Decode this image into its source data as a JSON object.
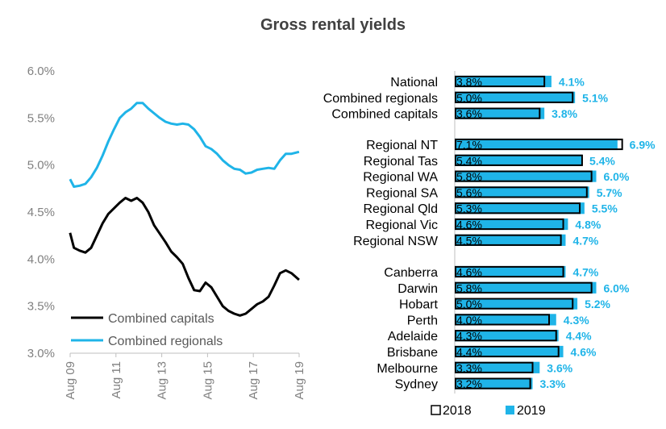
{
  "title": "Gross rental yields",
  "colors": {
    "y2019": "#1fb4e8",
    "capitals_line": "#000000",
    "regionals_line": "#1fb4e8",
    "axis": "#bfbfbf"
  },
  "chart_data": [
    {
      "type": "line",
      "x_ticks": [
        "Aug 09",
        "Aug 11",
        "Aug 13",
        "Aug 15",
        "Aug 17",
        "Aug 19"
      ],
      "y_ticks": [
        "6.0%",
        "5.5%",
        "5.0%",
        "4.5%",
        "4.0%",
        "3.5%",
        "3.0%"
      ],
      "ylim": [
        3.0,
        6.0
      ],
      "x_range": [
        2009.583,
        2019.583
      ],
      "series": [
        {
          "name": "Combined capitals",
          "x": [
            2009.58,
            2009.75,
            2010.0,
            2010.25,
            2010.5,
            2010.75,
            2011.0,
            2011.25,
            2011.5,
            2011.75,
            2012.0,
            2012.25,
            2012.5,
            2012.75,
            2013.0,
            2013.25,
            2013.5,
            2013.75,
            2014.0,
            2014.25,
            2014.5,
            2014.75,
            2015.0,
            2015.25,
            2015.5,
            2015.75,
            2016.0,
            2016.25,
            2016.5,
            2016.75,
            2017.0,
            2017.25,
            2017.5,
            2017.75,
            2018.0,
            2018.25,
            2018.5,
            2018.75,
            2019.0,
            2019.25,
            2019.58
          ],
          "values": [
            4.28,
            4.12,
            4.09,
            4.07,
            4.12,
            4.25,
            4.38,
            4.48,
            4.54,
            4.6,
            4.65,
            4.62,
            4.65,
            4.6,
            4.5,
            4.36,
            4.27,
            4.18,
            4.08,
            4.02,
            3.95,
            3.8,
            3.67,
            3.66,
            3.75,
            3.7,
            3.6,
            3.5,
            3.45,
            3.42,
            3.4,
            3.42,
            3.47,
            3.52,
            3.55,
            3.6,
            3.72,
            3.85,
            3.88,
            3.85,
            3.78
          ]
        },
        {
          "name": "Combined regionals",
          "x": [
            2009.58,
            2009.75,
            2010.0,
            2010.25,
            2010.5,
            2010.75,
            2011.0,
            2011.25,
            2011.5,
            2011.75,
            2012.0,
            2012.25,
            2012.5,
            2012.75,
            2013.0,
            2013.25,
            2013.5,
            2013.75,
            2014.0,
            2014.25,
            2014.5,
            2014.75,
            2015.0,
            2015.25,
            2015.5,
            2015.75,
            2016.0,
            2016.25,
            2016.5,
            2016.75,
            2017.0,
            2017.25,
            2017.5,
            2017.75,
            2018.0,
            2018.25,
            2018.5,
            2018.75,
            2019.0,
            2019.25,
            2019.58
          ],
          "values": [
            4.85,
            4.77,
            4.78,
            4.8,
            4.87,
            4.97,
            5.1,
            5.25,
            5.38,
            5.5,
            5.56,
            5.6,
            5.66,
            5.66,
            5.6,
            5.55,
            5.5,
            5.46,
            5.44,
            5.43,
            5.44,
            5.43,
            5.38,
            5.3,
            5.2,
            5.17,
            5.12,
            5.05,
            5.0,
            4.96,
            4.95,
            4.91,
            4.92,
            4.95,
            4.96,
            4.97,
            4.96,
            5.05,
            5.12,
            5.12,
            5.14
          ]
        }
      ]
    },
    {
      "type": "bar",
      "orientation": "horizontal",
      "legend": [
        "2018",
        "2019"
      ],
      "groups": [
        {
          "items": [
            {
              "label": "National",
              "v2018": 3.8,
              "v2019": 4.1,
              "t2018": "3.8%",
              "t2019": "4.1%"
            },
            {
              "label": "Combined regionals",
              "v2018": 5.0,
              "v2019": 5.1,
              "t2018": "5.0%",
              "t2019": "5.1%"
            },
            {
              "label": "Combined capitals",
              "v2018": 3.6,
              "v2019": 3.8,
              "t2018": "3.6%",
              "t2019": "3.8%"
            }
          ]
        },
        {
          "items": [
            {
              "label": "Regional NT",
              "v2018": 7.1,
              "v2019": 6.9,
              "t2018": "7.1%",
              "t2019": "6.9%"
            },
            {
              "label": "Regional Tas",
              "v2018": 5.4,
              "v2019": 5.4,
              "t2018": "5.4%",
              "t2019": "5.4%"
            },
            {
              "label": "Regional WA",
              "v2018": 5.8,
              "v2019": 6.0,
              "t2018": "5.8%",
              "t2019": "6.0%"
            },
            {
              "label": "Regional SA",
              "v2018": 5.6,
              "v2019": 5.7,
              "t2018": "5.6%",
              "t2019": "5.7%"
            },
            {
              "label": "Regional Qld",
              "v2018": 5.3,
              "v2019": 5.5,
              "t2018": "5.3%",
              "t2019": "5.5%"
            },
            {
              "label": "Regional Vic",
              "v2018": 4.6,
              "v2019": 4.8,
              "t2018": "4.6%",
              "t2019": "4.8%"
            },
            {
              "label": "Regional NSW",
              "v2018": 4.5,
              "v2019": 4.7,
              "t2018": "4.5%",
              "t2019": "4.7%"
            }
          ]
        },
        {
          "items": [
            {
              "label": "Canberra",
              "v2018": 4.6,
              "v2019": 4.7,
              "t2018": "4.6%",
              "t2019": "4.7%"
            },
            {
              "label": "Darwin",
              "v2018": 5.8,
              "v2019": 6.0,
              "t2018": "5.8%",
              "t2019": "6.0%"
            },
            {
              "label": "Hobart",
              "v2018": 5.0,
              "v2019": 5.2,
              "t2018": "5.0%",
              "t2019": "5.2%"
            },
            {
              "label": "Perth",
              "v2018": 4.0,
              "v2019": 4.3,
              "t2018": "4.0%",
              "t2019": "4.3%"
            },
            {
              "label": "Adelaide",
              "v2018": 4.3,
              "v2019": 4.4,
              "t2018": "4.3%",
              "t2019": "4.4%"
            },
            {
              "label": "Brisbane",
              "v2018": 4.4,
              "v2019": 4.6,
              "t2018": "4.4%",
              "t2019": "4.6%"
            },
            {
              "label": "Melbourne",
              "v2018": 3.3,
              "v2019": 3.6,
              "t2018": "3.3%",
              "t2019": "3.6%"
            },
            {
              "label": "Sydney",
              "v2018": 3.2,
              "v2019": 3.3,
              "t2018": "3.2%",
              "t2019": "3.3%"
            }
          ]
        }
      ]
    }
  ]
}
